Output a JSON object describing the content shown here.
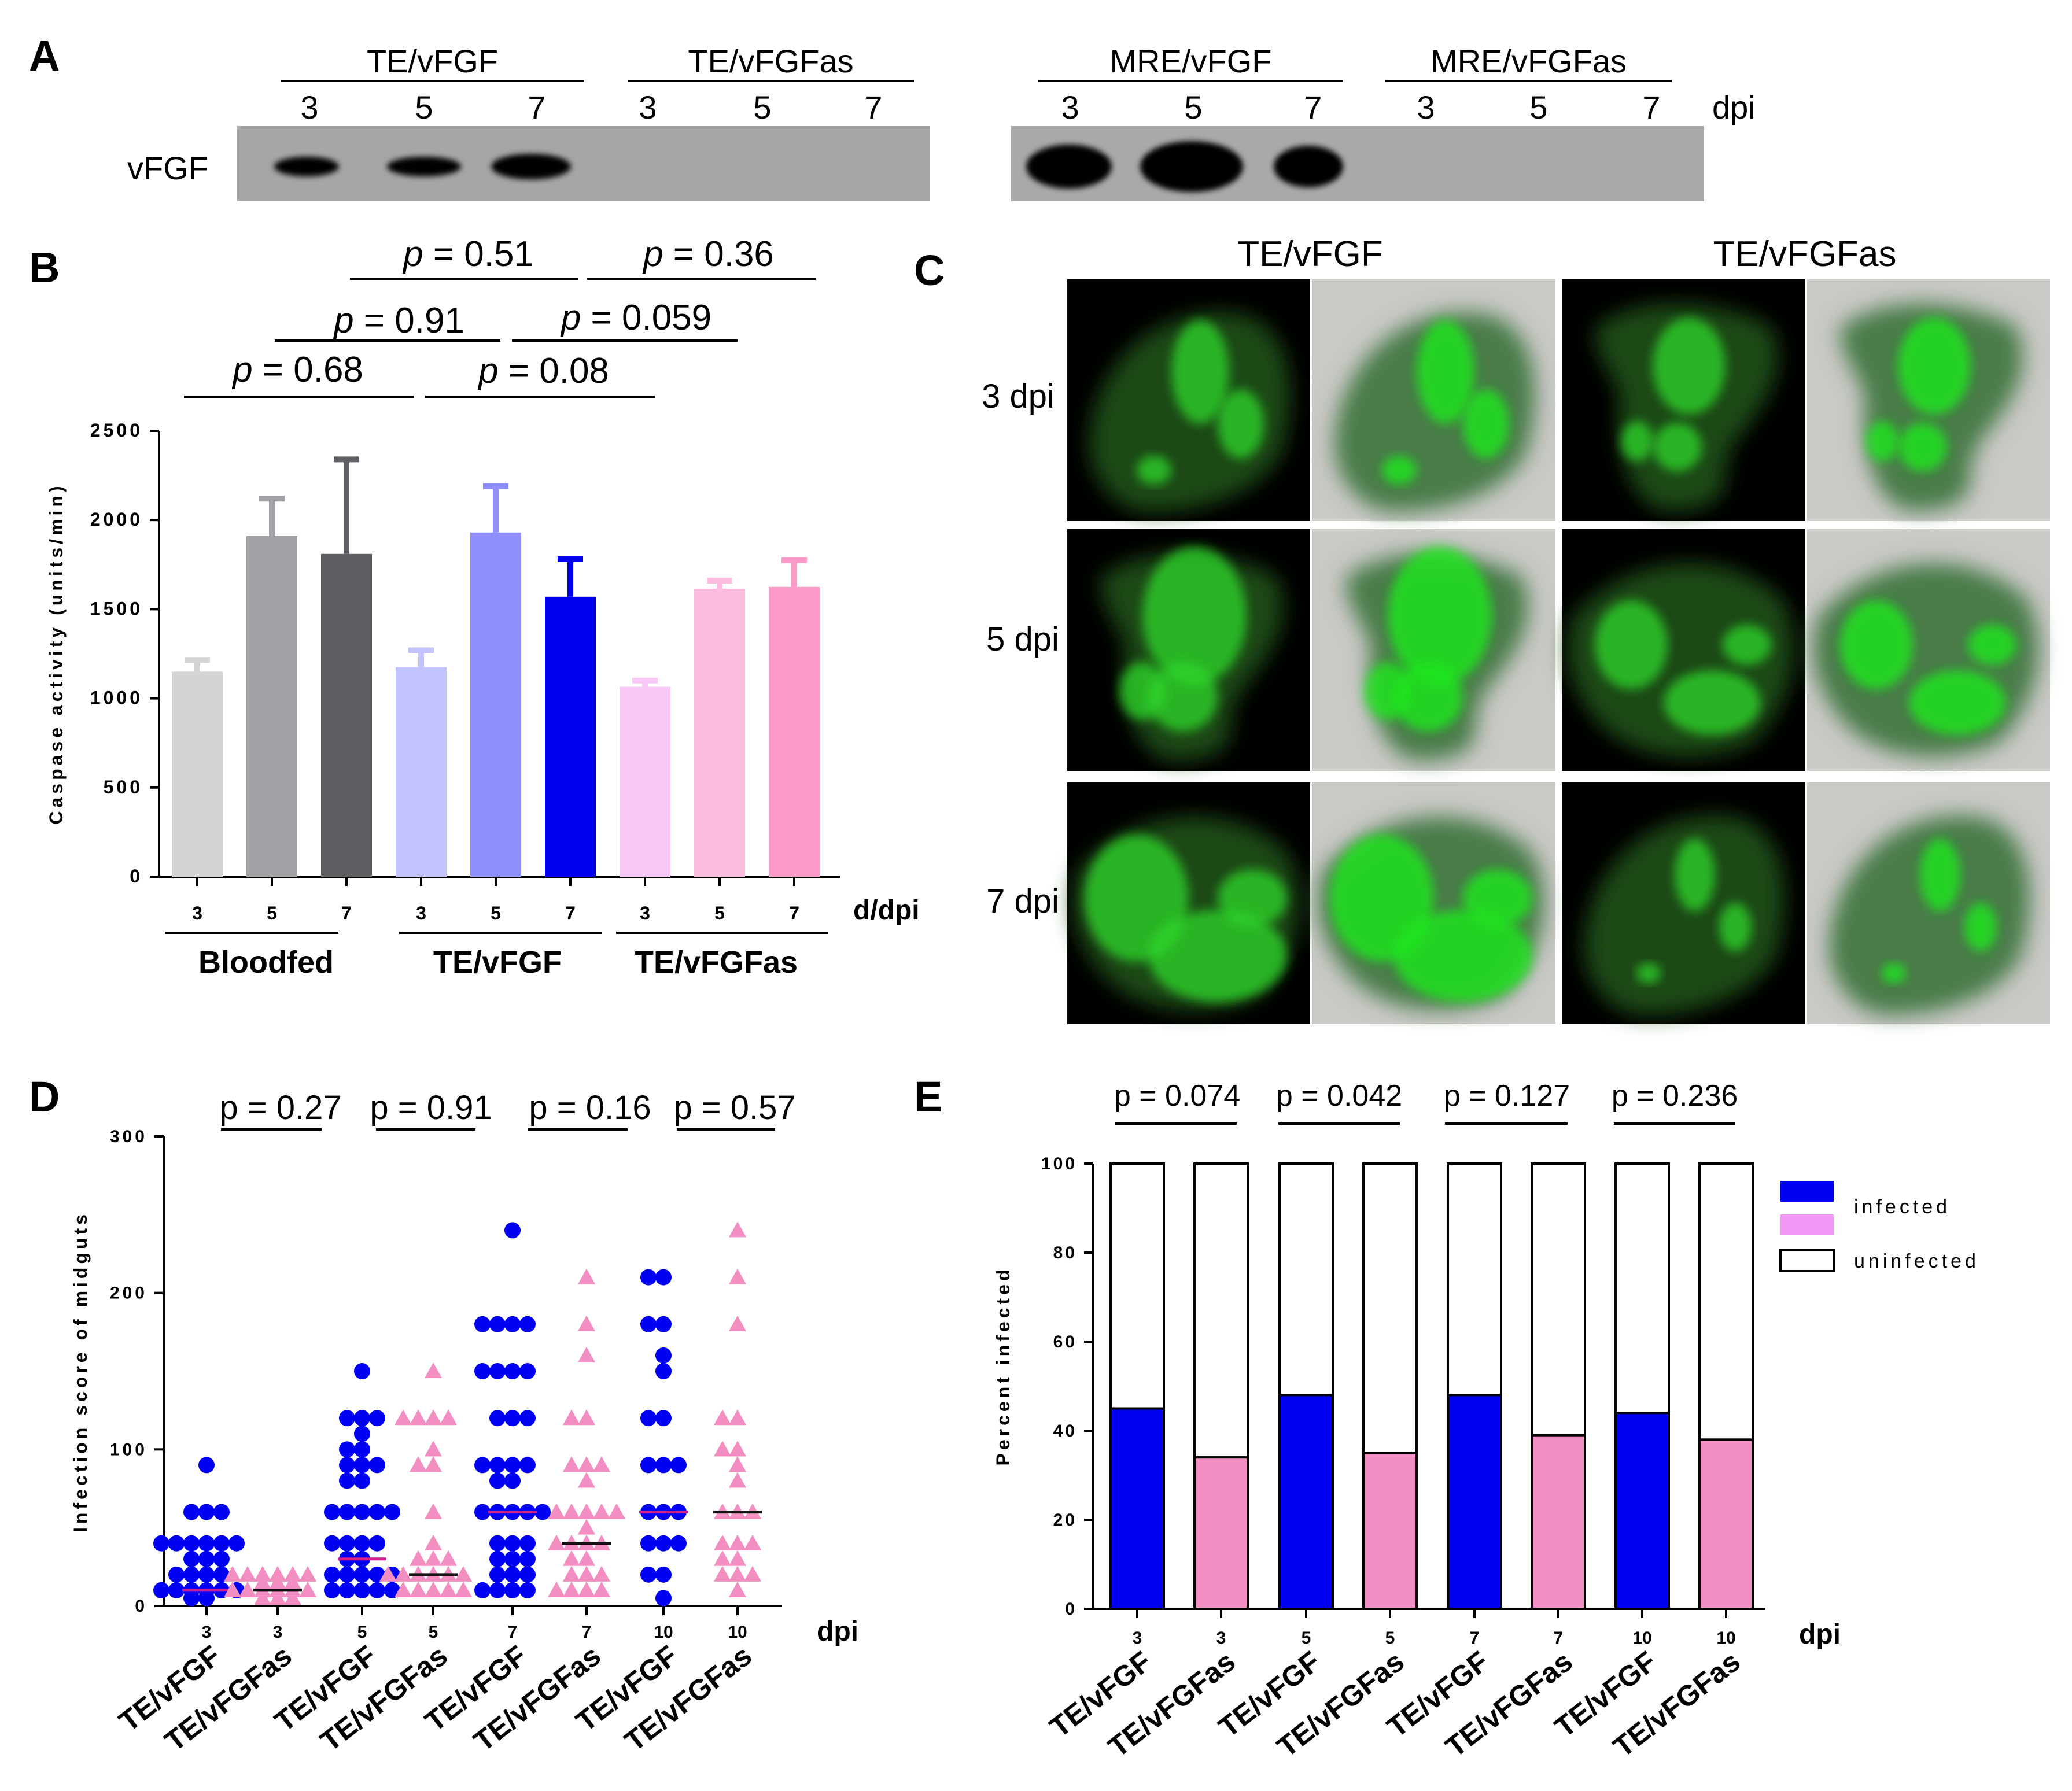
{
  "panel_labels": {
    "A": "A",
    "B": "B",
    "C": "C",
    "D": "D",
    "E": "E"
  },
  "colors": {
    "blue": "#0000f5",
    "pink": "#f28ec2",
    "black": "#000000",
    "bloodfed": [
      "#d4d4d4",
      "#a1a1a6",
      "#5e5e63"
    ],
    "te_vfgf": [
      "#c3c3ff",
      "#8f90fd",
      "#0000ee"
    ],
    "te_vfgfas": [
      "#f8c7f6",
      "#fdbde0",
      "#fb9ac9"
    ],
    "median_blue": "#d02090",
    "median_pink": "#111111"
  },
  "chart_data": [
    {
      "panel": "A",
      "type": "western_blot",
      "row_label": "vFGF",
      "axis_unit": "dpi",
      "groups": [
        {
          "name": "TE/vFGF",
          "lanes": [
            "3",
            "5",
            "7"
          ],
          "band_present": [
            true,
            true,
            true
          ]
        },
        {
          "name": "TE/vFGFas",
          "lanes": [
            "3",
            "5",
            "7"
          ],
          "band_present": [
            false,
            false,
            false
          ]
        },
        {
          "name": "MRE/vFGF",
          "lanes": [
            "3",
            "5",
            "7"
          ],
          "band_present": [
            true,
            true,
            true
          ]
        },
        {
          "name": "MRE/vFGFas",
          "lanes": [
            "3",
            "5",
            "7"
          ],
          "band_present": [
            false,
            false,
            false
          ]
        }
      ]
    },
    {
      "panel": "B",
      "type": "bar",
      "ylabel": "Caspase activity (units/min)",
      "xlabel": "d/dpi",
      "ylim": [
        0,
        2500
      ],
      "yticks": [
        "0",
        "500",
        "1000",
        "1500",
        "2000",
        "2500"
      ],
      "groups": [
        "Bloodfed",
        "TE/vFGF",
        "TE/vFGFas"
      ],
      "categories": [
        "3",
        "5",
        "7",
        "3",
        "5",
        "7",
        "3",
        "5",
        "7"
      ],
      "values": [
        1150,
        1910,
        1810,
        1175,
        1930,
        1570,
        1065,
        1615,
        1625
      ],
      "errors": [
        65,
        210,
        530,
        95,
        260,
        210,
        35,
        45,
        150
      ],
      "pvalues": [
        {
          "p": "p",
          "v": " = 0.51",
          "level": "top"
        },
        {
          "p": "p",
          "v": " = 0.36",
          "level": "top"
        },
        {
          "p": "p",
          "v": " = 0.91",
          "level": "mid"
        },
        {
          "p": "p",
          "v": " = 0.059",
          "level": "mid"
        },
        {
          "p": "p",
          "v": " = 0.68",
          "level": "low"
        },
        {
          "p": "p",
          "v": " = 0.08",
          "level": "low"
        }
      ]
    },
    {
      "panel": "C",
      "type": "image_grid",
      "columns": [
        "TE/vFGF",
        "TE/vFGFas"
      ],
      "rows": [
        "3 dpi",
        "5 dpi",
        "7 dpi"
      ]
    },
    {
      "panel": "D",
      "type": "scatter",
      "ylabel": "Infection score of midguts",
      "xlabel": "dpi",
      "ylim": [
        0,
        300
      ],
      "yticks": [
        "0",
        "100",
        "200",
        "300"
      ],
      "categories": [
        "3",
        "3",
        "5",
        "5",
        "7",
        "7",
        "10",
        "10"
      ],
      "names": [
        "TE/vFGF",
        "TE/vFGFas",
        "TE/vFGF",
        "TE/vFGFas",
        "TE/vFGF",
        "TE/vFGFas",
        "TE/vFGF",
        "TE/vFGFas"
      ],
      "medians": [
        10,
        10,
        30,
        20,
        60,
        40,
        60,
        60
      ],
      "pvalues": [
        "p = 0.27",
        "p = 0.91",
        "p = 0.16",
        "p = 0.57"
      ],
      "series": [
        {
          "name": "TE/vFGF 3",
          "marker": "circle",
          "values": [
            90,
            60,
            60,
            60,
            40,
            40,
            40,
            40,
            40,
            40,
            30,
            30,
            30,
            20,
            20,
            20,
            20,
            10,
            10,
            10,
            10,
            10,
            10,
            5,
            5
          ]
        },
        {
          "name": "TE/vFGFas 3",
          "marker": "triangle",
          "values": [
            20,
            20,
            20,
            20,
            20,
            20,
            15,
            15,
            15,
            10,
            10,
            10,
            10,
            10,
            10,
            5,
            5,
            5
          ]
        },
        {
          "name": "TE/vFGF 5",
          "marker": "circle",
          "values": [
            150,
            120,
            120,
            120,
            110,
            100,
            100,
            90,
            90,
            90,
            80,
            80,
            60,
            60,
            60,
            60,
            60,
            40,
            40,
            40,
            40,
            30,
            30,
            20,
            20,
            20,
            20,
            20,
            10,
            10,
            10,
            10,
            10
          ]
        },
        {
          "name": "TE/vFGFas 5",
          "marker": "triangle",
          "values": [
            150,
            120,
            120,
            120,
            120,
            100,
            90,
            90,
            60,
            40,
            30,
            30,
            30,
            20,
            20,
            20,
            20,
            20,
            20,
            10,
            10,
            10,
            10,
            10
          ]
        },
        {
          "name": "TE/vFGF 7",
          "marker": "circle",
          "values": [
            240,
            180,
            180,
            180,
            180,
            150,
            150,
            150,
            150,
            120,
            120,
            120,
            90,
            90,
            90,
            90,
            80,
            80,
            60,
            60,
            60,
            60,
            60,
            40,
            40,
            40,
            30,
            30,
            30,
            20,
            20,
            20,
            10,
            10,
            10,
            10
          ]
        },
        {
          "name": "TE/vFGFas 7",
          "marker": "triangle",
          "values": [
            210,
            180,
            160,
            120,
            120,
            90,
            90,
            90,
            80,
            60,
            60,
            60,
            60,
            60,
            50,
            40,
            40,
            40,
            40,
            30,
            30,
            20,
            20,
            20,
            10,
            10,
            10,
            10
          ]
        },
        {
          "name": "TE/vFGF 10",
          "marker": "circle",
          "values": [
            210,
            210,
            180,
            180,
            160,
            150,
            120,
            120,
            90,
            90,
            90,
            60,
            60,
            60,
            40,
            40,
            40,
            20,
            20,
            5
          ]
        },
        {
          "name": "TE/vFGFas 10",
          "marker": "triangle",
          "values": [
            240,
            210,
            180,
            120,
            120,
            100,
            100,
            90,
            80,
            60,
            60,
            60,
            40,
            40,
            40,
            30,
            30,
            20,
            20,
            20,
            10
          ]
        }
      ]
    },
    {
      "panel": "E",
      "type": "bar",
      "stacked": true,
      "ylabel": "Percent infected",
      "xlabel": "dpi",
      "ylim": [
        0,
        100
      ],
      "yticks": [
        "0",
        "20",
        "40",
        "60",
        "80",
        "100"
      ],
      "categories": [
        "3",
        "3",
        "5",
        "5",
        "7",
        "7",
        "10",
        "10"
      ],
      "names": [
        "TE/vFGF",
        "TE/vFGFas",
        "TE/vFGF",
        "TE/vFGFas",
        "TE/vFGF",
        "TE/vFGFas",
        "TE/vFGF",
        "TE/vFGFas"
      ],
      "series": [
        {
          "name": "infected",
          "values": [
            45,
            34,
            48,
            35,
            48,
            39,
            44,
            38
          ]
        },
        {
          "name": "uninfected",
          "values": [
            55,
            66,
            52,
            65,
            52,
            61,
            56,
            62
          ]
        }
      ],
      "legend": [
        "infected",
        "uninfected"
      ],
      "legend_position": "top-right",
      "pvalues": [
        "p = 0.074",
        "p = 0.042",
        "p = 0.127",
        "p = 0.236"
      ]
    }
  ]
}
